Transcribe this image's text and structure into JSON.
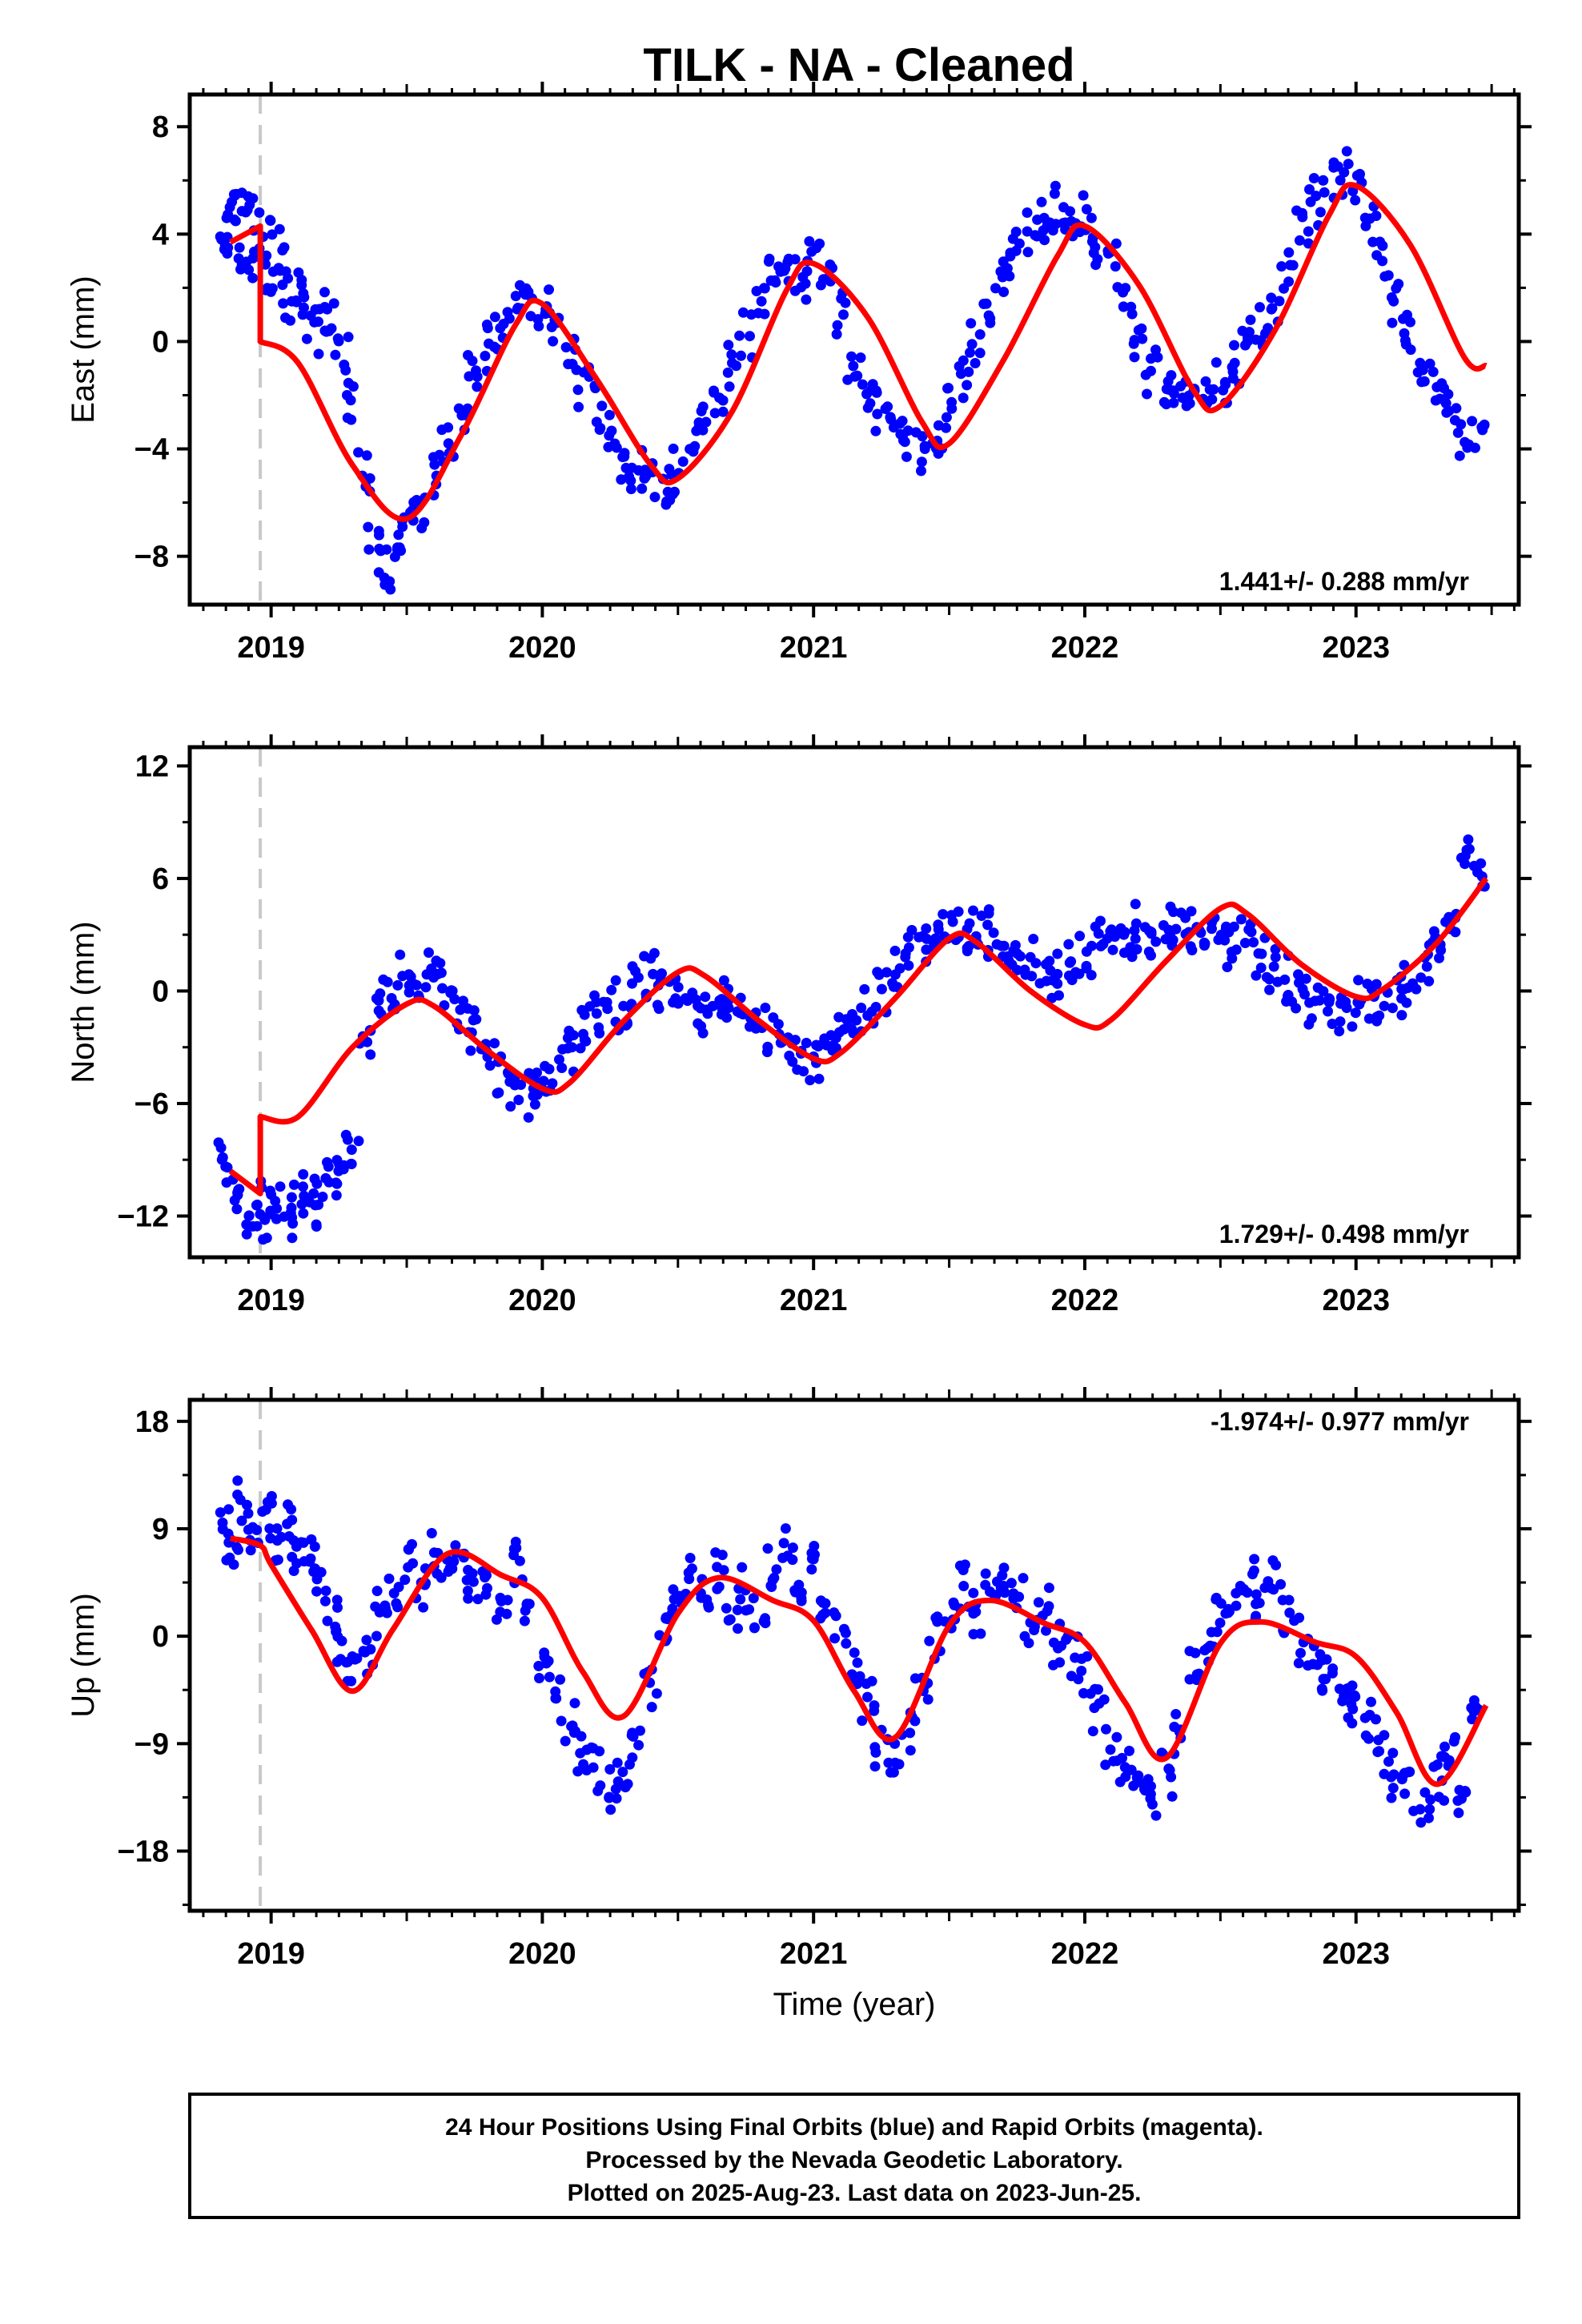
{
  "title": "TILK  - NA - Cleaned",
  "footer": {
    "lines": [
      "24 Hour Positions Using Final Orbits (blue) and Rapid Orbits (magenta).",
      "Processed by the Nevada Geodetic Laboratory.",
      "Plotted on 2025-Aug-23. Last data on 2023-Jun-25."
    ]
  },
  "colors": {
    "points": "#0000ff",
    "model": "#ff0000",
    "equipment_change": "#c8c8c8",
    "frame": "#000000"
  },
  "chart_data": [
    {
      "type": "scatter",
      "name": "east",
      "title": "",
      "ylabel": "East (mm)",
      "xlabel": "",
      "xlim": [
        2018.7,
        2023.6
      ],
      "ylim": [
        -9.8,
        9.2
      ],
      "yticks": [
        -8,
        -4,
        0,
        4,
        8
      ],
      "xticks": [
        2019,
        2020,
        2021,
        2022,
        2023
      ],
      "rate_text": "1.441+/- 0.288 mm/yr",
      "rate_position": "bottom-right",
      "equipment_change_year": 2018.96,
      "model": {
        "x": [
          2018.85,
          2018.96,
          2018.96,
          2019.1,
          2019.3,
          2019.5,
          2019.7,
          2019.9,
          2020.0,
          2020.2,
          2020.4,
          2020.5,
          2020.7,
          2020.9,
          2021.0,
          2021.2,
          2021.4,
          2021.5,
          2021.7,
          2021.9,
          2022.0,
          2022.2,
          2022.4,
          2022.5,
          2022.7,
          2022.9,
          2023.0,
          2023.2,
          2023.4,
          2023.48
        ],
        "y": [
          3.7,
          4.3,
          0.0,
          -0.8,
          -4.6,
          -6.6,
          -3.5,
          0.6,
          1.4,
          -1.4,
          -4.6,
          -5.1,
          -2.6,
          1.9,
          2.9,
          0.9,
          -3.0,
          -3.8,
          -0.7,
          3.2,
          4.3,
          2.1,
          -1.8,
          -2.4,
          0.4,
          4.7,
          5.8,
          3.6,
          -0.6,
          -0.9
        ]
      },
      "points": {
        "x": [
          2018.83,
          2018.85,
          2018.88,
          2018.9,
          2018.92,
          2018.95,
          2018.98,
          2019.0,
          2019.03,
          2019.06,
          2019.1,
          2019.14,
          2019.18,
          2019.22,
          2019.26,
          2019.3,
          2019.34,
          2019.38,
          2019.42,
          2019.46,
          2019.5,
          2019.55,
          2019.6,
          2019.65,
          2019.7,
          2019.75,
          2019.8,
          2019.85,
          2019.9,
          2019.95,
          2020.0,
          2020.05,
          2020.1,
          2020.15,
          2020.2,
          2020.25,
          2020.3,
          2020.35,
          2020.4,
          2020.45,
          2020.5,
          2020.55,
          2020.6,
          2020.65,
          2020.7,
          2020.75,
          2020.8,
          2020.85,
          2020.9,
          2020.95,
          2021.0,
          2021.05,
          2021.1,
          2021.15,
          2021.2,
          2021.25,
          2021.3,
          2021.35,
          2021.4,
          2021.45,
          2021.5,
          2021.55,
          2021.6,
          2021.65,
          2021.7,
          2021.75,
          2021.8,
          2021.85,
          2021.9,
          2021.95,
          2022.0,
          2022.05,
          2022.1,
          2022.15,
          2022.2,
          2022.25,
          2022.3,
          2022.35,
          2022.4,
          2022.45,
          2022.5,
          2022.55,
          2022.6,
          2022.65,
          2022.7,
          2022.75,
          2022.8,
          2022.85,
          2022.9,
          2022.95,
          2023.0,
          2023.05,
          2023.1,
          2023.15,
          2023.2,
          2023.25,
          2023.3,
          2023.35,
          2023.4,
          2023.45
        ],
        "y": [
          3.8,
          4.6,
          5.2,
          3.5,
          4.9,
          3.1,
          3.9,
          2.6,
          3.4,
          1.5,
          2.1,
          1.0,
          0.4,
          1.2,
          -0.5,
          -2.0,
          -5.0,
          -7.8,
          -8.6,
          -7.2,
          -6.9,
          -6.1,
          -5.0,
          -3.8,
          -2.5,
          -1.3,
          -0.2,
          0.5,
          1.2,
          1.6,
          1.2,
          0.7,
          -0.3,
          -1.8,
          -2.4,
          -3.5,
          -4.3,
          -4.8,
          -5.1,
          -5.6,
          -4.9,
          -4.1,
          -3.0,
          -1.9,
          -0.8,
          0.2,
          1.5,
          2.2,
          2.6,
          2.4,
          3.0,
          2.1,
          1.0,
          -0.6,
          -1.6,
          -2.7,
          -3.2,
          -3.5,
          -4.0,
          -3.7,
          -2.5,
          -1.2,
          -0.1,
          1.4,
          2.4,
          3.3,
          4.1,
          4.6,
          5.0,
          4.4,
          4.6,
          3.3,
          2.8,
          1.3,
          0.1,
          -1.1,
          -1.8,
          -2.1,
          -2.4,
          -2.3,
          -1.6,
          -0.8,
          0.0,
          0.5,
          1.2,
          2.8,
          4.1,
          5.2,
          6.0,
          6.3,
          5.6,
          4.3,
          3.0,
          1.5,
          0.3,
          -0.8,
          -1.7,
          -2.3,
          -3.4,
          -3.1
        ]
      }
    },
    {
      "type": "scatter",
      "name": "north",
      "title": "",
      "ylabel": "North (mm)",
      "xlabel": "",
      "xlim": [
        2018.7,
        2023.6
      ],
      "ylim": [
        -14.2,
        13.0
      ],
      "yticks": [
        -12,
        -6,
        0,
        6,
        12
      ],
      "xticks": [
        2019,
        2020,
        2021,
        2022,
        2023
      ],
      "rate_text": "1.729+/- 0.498 mm/yr",
      "rate_position": "bottom-right",
      "equipment_change_year": 2018.96,
      "model": {
        "x": [
          2018.85,
          2018.96,
          2018.96,
          2019.1,
          2019.3,
          2019.5,
          2019.6,
          2019.8,
          2020.0,
          2020.1,
          2020.3,
          2020.5,
          2020.6,
          2020.8,
          2021.0,
          2021.1,
          2021.3,
          2021.5,
          2021.6,
          2021.8,
          2022.0,
          2022.1,
          2022.3,
          2022.5,
          2022.6,
          2022.8,
          2023.0,
          2023.1,
          2023.3,
          2023.48
        ],
        "y": [
          -9.6,
          -10.8,
          -6.7,
          -6.7,
          -3.0,
          -0.7,
          -0.8,
          -3.2,
          -5.2,
          -4.9,
          -1.6,
          1.0,
          0.8,
          -1.6,
          -3.6,
          -3.3,
          -0.4,
          2.8,
          2.6,
          0.0,
          -1.8,
          -1.5,
          1.6,
          4.4,
          4.1,
          1.4,
          -0.3,
          0.1,
          2.6,
          6.0
        ]
      },
      "points": {
        "x": [
          2018.83,
          2018.86,
          2018.9,
          2018.94,
          2018.98,
          2019.02,
          2019.06,
          2019.1,
          2019.14,
          2019.18,
          2019.22,
          2019.26,
          2019.3,
          2019.35,
          2019.4,
          2019.45,
          2019.5,
          2019.55,
          2019.6,
          2019.65,
          2019.7,
          2019.75,
          2019.8,
          2019.85,
          2019.9,
          2019.95,
          2020.0,
          2020.05,
          2020.1,
          2020.15,
          2020.2,
          2020.25,
          2020.3,
          2020.35,
          2020.4,
          2020.45,
          2020.5,
          2020.55,
          2020.6,
          2020.65,
          2020.7,
          2020.75,
          2020.8,
          2020.85,
          2020.9,
          2020.95,
          2021.0,
          2021.05,
          2021.1,
          2021.15,
          2021.2,
          2021.25,
          2021.3,
          2021.35,
          2021.4,
          2021.45,
          2021.5,
          2021.55,
          2021.6,
          2021.65,
          2021.7,
          2021.75,
          2021.8,
          2021.85,
          2021.9,
          2021.95,
          2022.0,
          2022.05,
          2022.1,
          2022.15,
          2022.2,
          2022.25,
          2022.3,
          2022.35,
          2022.4,
          2022.45,
          2022.5,
          2022.55,
          2022.6,
          2022.65,
          2022.7,
          2022.75,
          2022.8,
          2022.85,
          2022.9,
          2022.95,
          2023.0,
          2023.05,
          2023.1,
          2023.15,
          2023.2,
          2023.25,
          2023.3,
          2023.35,
          2023.4,
          2023.45
        ],
        "y": [
          -9.0,
          -10.6,
          -12.0,
          -11.4,
          -12.2,
          -11.6,
          -12.4,
          -11.0,
          -10.8,
          -11.4,
          -10.2,
          -9.6,
          -8.0,
          -2.8,
          -0.4,
          0.3,
          0.8,
          0.2,
          0.9,
          0.0,
          -1.0,
          -2.2,
          -3.1,
          -4.4,
          -5.0,
          -5.6,
          -4.8,
          -4.1,
          -3.0,
          -2.3,
          -1.2,
          -0.6,
          -0.8,
          0.4,
          0.9,
          0.3,
          -0.4,
          -0.8,
          -1.0,
          -0.5,
          -0.9,
          -1.2,
          -2.0,
          -2.3,
          -2.8,
          -3.2,
          -3.5,
          -2.9,
          -2.2,
          -1.6,
          -0.9,
          0.1,
          1.2,
          2.0,
          2.2,
          2.5,
          2.9,
          3.3,
          3.6,
          3.1,
          2.4,
          2.0,
          1.8,
          1.6,
          0.9,
          1.5,
          2.1,
          2.5,
          2.8,
          3.0,
          3.4,
          3.2,
          3.5,
          3.9,
          3.4,
          3.1,
          2.7,
          2.2,
          2.6,
          2.0,
          1.3,
          0.6,
          0.1,
          -0.5,
          -0.6,
          -0.9,
          -0.6,
          -0.3,
          -0.8,
          -0.4,
          0.4,
          1.3,
          2.6,
          3.9,
          7.2,
          6.8
        ]
      }
    },
    {
      "type": "scatter",
      "name": "up",
      "title": "",
      "ylabel": "Up (mm)",
      "xlabel": "Time (year)",
      "xlim": [
        2018.7,
        2023.6
      ],
      "ylim": [
        -23.0,
        19.8
      ],
      "yticks": [
        -18,
        -9,
        0,
        9,
        18
      ],
      "xticks": [
        2019,
        2020,
        2021,
        2022,
        2023
      ],
      "rate_text": "-1.974+/- 0.977 mm/yr",
      "rate_position": "top-right",
      "equipment_change_year": 2018.96,
      "model": {
        "x": [
          2018.85,
          2018.96,
          2019.0,
          2019.15,
          2019.3,
          2019.45,
          2019.65,
          2019.85,
          2020.0,
          2020.15,
          2020.3,
          2020.5,
          2020.65,
          2020.85,
          2021.0,
          2021.15,
          2021.3,
          2021.5,
          2021.65,
          2021.85,
          2022.0,
          2022.15,
          2022.3,
          2022.5,
          2022.65,
          2022.85,
          2023.0,
          2023.15,
          2023.3,
          2023.48
        ],
        "y": [
          8.2,
          7.6,
          6.0,
          0.5,
          -4.6,
          0.6,
          6.9,
          5.1,
          3.2,
          -3.0,
          -6.7,
          1.9,
          4.9,
          3.0,
          1.3,
          -4.6,
          -8.5,
          0.9,
          3.0,
          1.1,
          -0.5,
          -5.6,
          -10.2,
          -0.6,
          1.2,
          -0.5,
          -1.7,
          -6.4,
          -12.4,
          -5.8
        ]
      },
      "points": {
        "x": [
          2018.83,
          2018.86,
          2018.9,
          2018.94,
          2018.98,
          2019.02,
          2019.06,
          2019.1,
          2019.14,
          2019.18,
          2019.22,
          2019.26,
          2019.3,
          2019.35,
          2019.4,
          2019.45,
          2019.5,
          2019.55,
          2019.6,
          2019.65,
          2019.7,
          2019.75,
          2019.8,
          2019.85,
          2019.9,
          2019.95,
          2020.0,
          2020.05,
          2020.1,
          2020.15,
          2020.2,
          2020.25,
          2020.3,
          2020.35,
          2020.4,
          2020.45,
          2020.5,
          2020.55,
          2020.6,
          2020.65,
          2020.7,
          2020.75,
          2020.8,
          2020.85,
          2020.9,
          2020.95,
          2021.0,
          2021.05,
          2021.1,
          2021.15,
          2021.2,
          2021.25,
          2021.3,
          2021.35,
          2021.4,
          2021.45,
          2021.5,
          2021.55,
          2021.6,
          2021.65,
          2021.7,
          2021.75,
          2021.8,
          2021.85,
          2021.9,
          2021.95,
          2022.0,
          2022.05,
          2022.1,
          2022.15,
          2022.2,
          2022.25,
          2022.3,
          2022.35,
          2022.4,
          2022.45,
          2022.5,
          2022.55,
          2022.6,
          2022.65,
          2022.7,
          2022.75,
          2022.8,
          2022.85,
          2022.9,
          2022.95,
          2023.0,
          2023.05,
          2023.1,
          2023.15,
          2023.2,
          2023.25,
          2023.3,
          2023.35,
          2023.4,
          2023.45
        ],
        "y": [
          9.5,
          6.0,
          11.0,
          7.2,
          10.6,
          8.3,
          9.4,
          6.1,
          7.5,
          3.8,
          2.4,
          -0.4,
          -2.2,
          -1.1,
          2.0,
          3.6,
          6.1,
          4.3,
          7.0,
          4.9,
          6.6,
          3.8,
          5.5,
          3.2,
          6.3,
          2.7,
          -2.5,
          -5.2,
          -7.5,
          -9.8,
          -11.0,
          -12.8,
          -10.6,
          -8.3,
          -3.9,
          -0.2,
          3.1,
          4.8,
          3.6,
          5.8,
          2.2,
          4.1,
          1.5,
          5.6,
          7.8,
          4.3,
          5.6,
          2.8,
          0.6,
          -3.2,
          -5.8,
          -9.3,
          -10.6,
          -8.1,
          -3.5,
          -0.4,
          2.6,
          4.2,
          1.9,
          3.4,
          5.1,
          3.3,
          0.8,
          2.1,
          -1.0,
          -1.8,
          -3.6,
          -6.0,
          -9.5,
          -11.2,
          -12.8,
          -13.6,
          -11.8,
          -8.0,
          -3.2,
          -0.8,
          1.9,
          3.6,
          5.2,
          2.7,
          4.6,
          1.3,
          -0.5,
          -2.4,
          -3.1,
          -5.0,
          -6.1,
          -6.6,
          -9.7,
          -11.8,
          -13.2,
          -14.5,
          -12.1,
          -10.4,
          -14.8,
          -6.3
        ]
      }
    }
  ]
}
